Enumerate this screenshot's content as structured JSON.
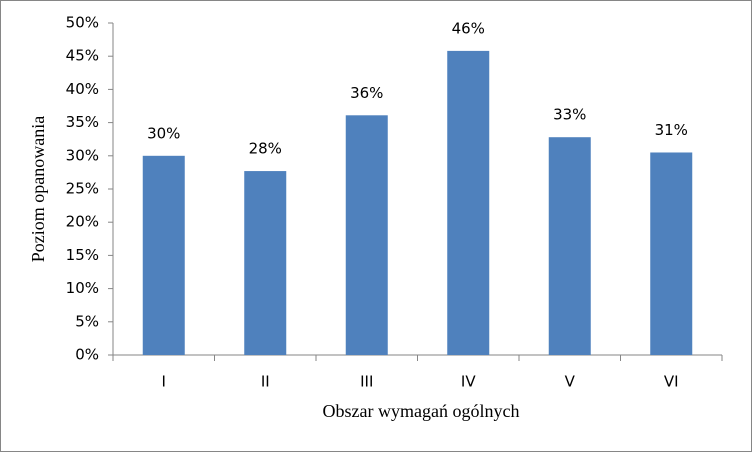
{
  "chart_data": {
    "type": "bar",
    "x_label": "Obszar wymagań ogólnych",
    "y_label": "Poziom opanowania",
    "categories": [
      "I",
      "II",
      "III",
      "IV",
      "V",
      "VI"
    ],
    "values": [
      30,
      27.7,
      36.1,
      45.8,
      32.8,
      30.5
    ],
    "value_labels": [
      "30%",
      "28%",
      "36%",
      "46%",
      "33%",
      "31%"
    ],
    "color": "#4f81bd",
    "ylim": [
      0,
      50
    ],
    "yticks": [
      {
        "value": 0,
        "label": "0%"
      },
      {
        "value": 5,
        "label": "5%"
      },
      {
        "value": 10,
        "label": "10%"
      },
      {
        "value": 15,
        "label": "15%"
      },
      {
        "value": 20,
        "label": "20%"
      },
      {
        "value": 25,
        "label": "25%"
      },
      {
        "value": 30,
        "label": "30%"
      },
      {
        "value": 35,
        "label": "35%"
      },
      {
        "value": 40,
        "label": "40%"
      },
      {
        "value": 45,
        "label": "45%"
      },
      {
        "value": 50,
        "label": "50%"
      }
    ]
  }
}
